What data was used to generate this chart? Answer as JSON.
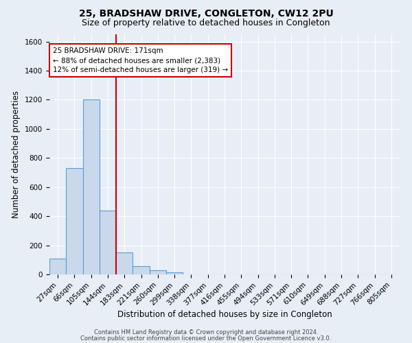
{
  "title": "25, BRADSHAW DRIVE, CONGLETON, CW12 2PU",
  "subtitle": "Size of property relative to detached houses in Congleton",
  "xlabel": "Distribution of detached houses by size in Congleton",
  "ylabel": "Number of detached properties",
  "footnote1": "Contains HM Land Registry data © Crown copyright and database right 2024.",
  "footnote2": "Contains public sector information licensed under the Open Government Licence v3.0.",
  "bar_labels": [
    "27sqm",
    "66sqm",
    "105sqm",
    "144sqm",
    "183sqm",
    "221sqm",
    "260sqm",
    "299sqm",
    "338sqm",
    "377sqm",
    "416sqm",
    "455sqm",
    "494sqm",
    "533sqm",
    "571sqm",
    "610sqm",
    "649sqm",
    "688sqm",
    "727sqm",
    "766sqm",
    "805sqm"
  ],
  "bar_heights": [
    110,
    730,
    1200,
    440,
    150,
    55,
    30,
    15,
    0,
    0,
    0,
    0,
    0,
    0,
    0,
    0,
    0,
    0,
    0,
    0,
    0
  ],
  "bar_color": "#c9d9eb",
  "bar_edge_color": "#5b9bd5",
  "red_line_color": "#cc0000",
  "annotation_text": "25 BRADSHAW DRIVE: 171sqm\n← 88% of detached houses are smaller (2,383)\n12% of semi-detached houses are larger (319) →",
  "annotation_box_color": "white",
  "annotation_box_edge": "#cc0000",
  "ylim": [
    0,
    1650
  ],
  "yticks": [
    0,
    200,
    400,
    600,
    800,
    1000,
    1200,
    1400,
    1600
  ],
  "background_color": "#e8eef5",
  "plot_background": "#e8eef5",
  "grid_color": "white",
  "title_fontsize": 10,
  "subtitle_fontsize": 9,
  "axis_label_fontsize": 8.5,
  "tick_fontsize": 7.5,
  "footnote_fontsize": 6.0
}
